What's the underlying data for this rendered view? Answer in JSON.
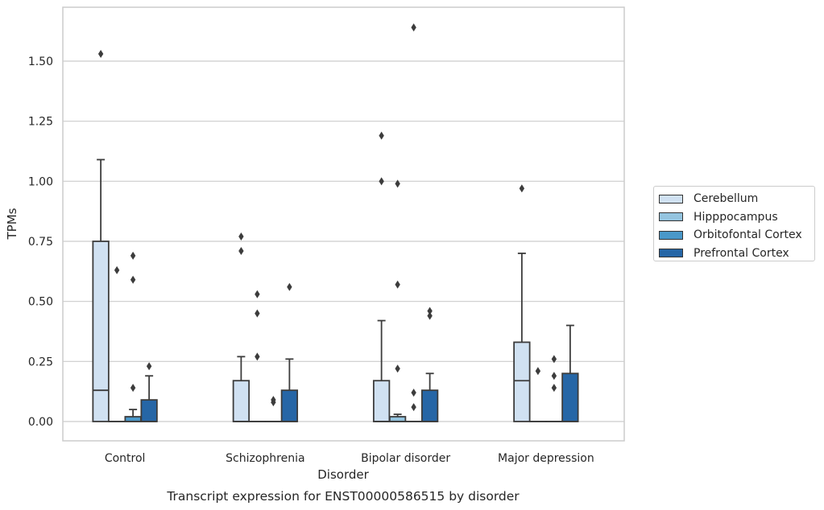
{
  "chart_data": {
    "type": "box",
    "title": "Transcript expression for ENST00000586515 by disorder",
    "xlabel": "Disorder",
    "ylabel": "TPMs",
    "ylim": [
      -0.08,
      1.74
    ],
    "yticks": [
      "0.00",
      "0.25",
      "0.50",
      "0.75",
      "1.00",
      "1.25",
      "1.50"
    ],
    "grid": "horizontal",
    "legend_position": "right",
    "categories": [
      "Control",
      "Schizophrenia",
      "Bipolar disorder",
      "Major depression"
    ],
    "series": [
      {
        "name": "Cerebellum",
        "color": "#d0e1f2",
        "boxes": [
          {
            "q1": 0.0,
            "median": 0.13,
            "q3": 0.75,
            "whisker_low": 0.0,
            "whisker_high": 1.09,
            "outliers": [
              1.53
            ]
          },
          {
            "q1": 0.0,
            "median": 0.0,
            "q3": 0.17,
            "whisker_low": 0.0,
            "whisker_high": 0.27,
            "outliers": [
              0.77,
              0.71
            ]
          },
          {
            "q1": 0.0,
            "median": 0.0,
            "q3": 0.17,
            "whisker_low": 0.0,
            "whisker_high": 0.42,
            "outliers": [
              1.19,
              1.0
            ]
          },
          {
            "q1": 0.0,
            "median": 0.17,
            "q3": 0.33,
            "whisker_low": 0.0,
            "whisker_high": 0.7,
            "outliers": [
              0.97
            ]
          }
        ]
      },
      {
        "name": "Hipppocampus",
        "color": "#94c4df",
        "boxes": [
          {
            "q1": 0.0,
            "median": 0.0,
            "q3": 0.0,
            "whisker_low": 0.0,
            "whisker_high": 0.0,
            "outliers": [
              0.63
            ]
          },
          {
            "q1": 0.0,
            "median": 0.0,
            "q3": 0.0,
            "whisker_low": 0.0,
            "whisker_high": 0.0,
            "outliers": [
              0.53,
              0.45,
              0.27
            ]
          },
          {
            "q1": 0.0,
            "median": 0.0,
            "q3": 0.02,
            "whisker_low": 0.0,
            "whisker_high": 0.03,
            "outliers": [
              0.99,
              0.57,
              0.22
            ]
          },
          {
            "q1": 0.0,
            "median": 0.0,
            "q3": 0.0,
            "whisker_low": 0.0,
            "whisker_high": 0.0,
            "outliers": [
              0.21
            ]
          }
        ]
      },
      {
        "name": "Orbitofontal Cortex",
        "color": "#4a98c9",
        "boxes": [
          {
            "q1": 0.0,
            "median": 0.0,
            "q3": 0.02,
            "whisker_low": 0.0,
            "whisker_high": 0.05,
            "outliers": [
              0.69,
              0.59,
              0.14
            ]
          },
          {
            "q1": 0.0,
            "median": 0.0,
            "q3": 0.0,
            "whisker_low": 0.0,
            "whisker_high": 0.0,
            "outliers": [
              0.09,
              0.08
            ]
          },
          {
            "q1": 0.0,
            "median": 0.0,
            "q3": 0.0,
            "whisker_low": 0.0,
            "whisker_high": 0.0,
            "outliers": [
              1.64,
              0.12,
              0.06
            ]
          },
          {
            "q1": 0.0,
            "median": 0.0,
            "q3": 0.0,
            "whisker_low": 0.0,
            "whisker_high": 0.0,
            "outliers": [
              0.26,
              0.19,
              0.14
            ]
          }
        ]
      },
      {
        "name": "Prefrontal Cortex",
        "color": "#2666a6",
        "boxes": [
          {
            "q1": 0.0,
            "median": 0.0,
            "q3": 0.09,
            "whisker_low": 0.0,
            "whisker_high": 0.19,
            "outliers": [
              0.23
            ]
          },
          {
            "q1": 0.0,
            "median": 0.0,
            "q3": 0.13,
            "whisker_low": 0.0,
            "whisker_high": 0.26,
            "outliers": [
              0.56
            ]
          },
          {
            "q1": 0.0,
            "median": 0.0,
            "q3": 0.13,
            "whisker_low": 0.0,
            "whisker_high": 0.2,
            "outliers": [
              0.46,
              0.44
            ]
          },
          {
            "q1": 0.0,
            "median": 0.0,
            "q3": 0.2,
            "whisker_low": 0.0,
            "whisker_high": 0.4,
            "outliers": []
          }
        ]
      }
    ]
  }
}
